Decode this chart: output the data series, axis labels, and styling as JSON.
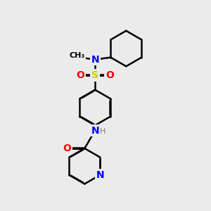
{
  "background_color": "#ebebeb",
  "atom_colors": {
    "C": "#000000",
    "N": "#0000ff",
    "O": "#ff0000",
    "S": "#cccc00",
    "H": "#7f7f7f"
  },
  "bond_color": "#000000",
  "bond_lw": 1.8,
  "double_sep": 0.018,
  "fig_width": 3.0,
  "fig_height": 3.0,
  "dpi": 100
}
